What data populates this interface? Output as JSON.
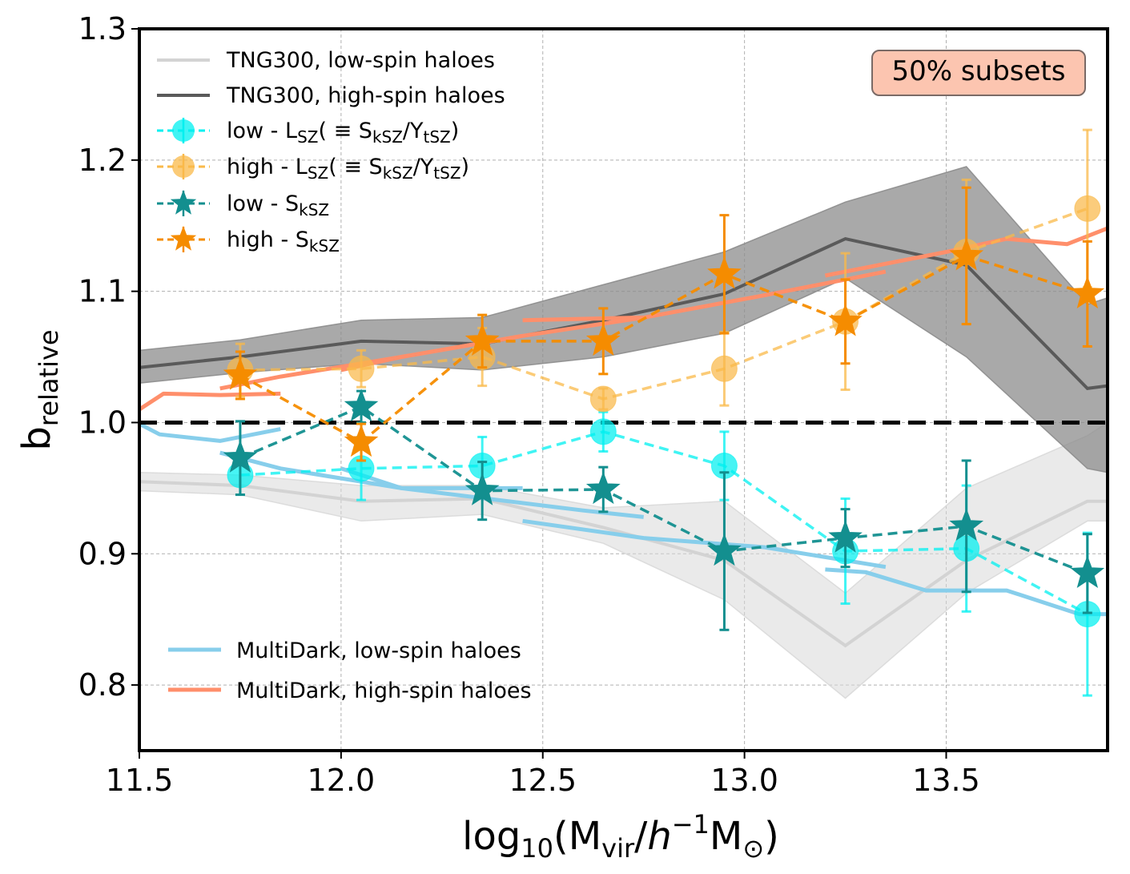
{
  "chart_data": {
    "type": "line",
    "title": "",
    "xlabel": "log10(Mvir/h-1 M⊙)",
    "xlabel_parts": {
      "pre": "log",
      "sub1": "10",
      "mid": "(M",
      "sub2": "vir",
      "slash": "/",
      "h": "h",
      "sup": "−1",
      "m": "M",
      "sun": "⊙",
      "close": ")"
    },
    "ylabel": "brelative",
    "ylabel_parts": {
      "main": "b",
      "sub": "relative"
    },
    "xlim": [
      11.5,
      13.9
    ],
    "ylim": [
      0.75,
      1.3
    ],
    "xticks": [
      11.5,
      12.0,
      12.5,
      13.0,
      13.5
    ],
    "xtick_labels": [
      "11.5",
      "12.0",
      "12.5",
      "13.0",
      "13.5"
    ],
    "yticks": [
      0.8,
      0.9,
      1.0,
      1.1,
      1.2,
      1.3
    ],
    "ytick_labels": [
      "0.8",
      "0.9",
      "1.0",
      "1.1",
      "1.2",
      "1.3"
    ],
    "grid": true,
    "reference_line": 1.0,
    "annotation": "50% subsets",
    "colors": {
      "tng_low": "#d3d3d3",
      "tng_high": "#5a5a5a",
      "tng_low_band": "#d9d9d9",
      "tng_high_band": "#8c8c8c",
      "cyan": "#00f0f0",
      "teal": "#138f8f",
      "lightorange": "#f9b94a",
      "darkorange": "#f58c00",
      "md_low": "#87ceeb",
      "md_high": "#ff8f6b",
      "annot_fill": "#fcc5b0",
      "annot_edge": "#7a6a66"
    },
    "tng": {
      "x": [
        11.5,
        11.75,
        12.05,
        12.35,
        12.65,
        12.95,
        13.25,
        13.55,
        13.85,
        13.9
      ],
      "low": {
        "name": "TNG300, low-spin haloes",
        "center": [
          0.955,
          0.952,
          0.94,
          0.942,
          0.92,
          0.895,
          0.83,
          0.895,
          0.94,
          0.94
        ],
        "lower": [
          0.948,
          0.945,
          0.925,
          0.93,
          0.908,
          0.865,
          0.79,
          0.87,
          0.925,
          0.925
        ],
        "upper": [
          0.962,
          0.96,
          0.952,
          0.952,
          0.935,
          0.94,
          0.87,
          0.95,
          0.99,
          1.0
        ]
      },
      "high": {
        "name": "TNG300, high-spin haloes",
        "center": [
          1.042,
          1.05,
          1.062,
          1.06,
          1.078,
          1.098,
          1.14,
          1.12,
          1.026,
          1.028
        ],
        "lower": [
          1.03,
          1.038,
          1.045,
          1.04,
          1.05,
          1.068,
          1.11,
          1.05,
          0.965,
          0.962
        ],
        "upper": [
          1.055,
          1.063,
          1.078,
          1.08,
          1.105,
          1.13,
          1.168,
          1.195,
          1.09,
          1.095
        ]
      }
    },
    "markers": {
      "x": [
        11.75,
        12.05,
        12.35,
        12.65,
        12.95,
        13.25,
        13.55,
        13.85
      ],
      "series": [
        {
          "name": "low - LSZ(≡SkSZ/YtSZ)",
          "label_parts": {
            "pre": "low - L",
            "sub1": "SZ",
            "mid": "( ≡ S",
            "sub2": "kSZ",
            "mid2": "/Y",
            "sub3": "tSZ",
            "post": ")"
          },
          "marker": "circle",
          "color_key": "cyan",
          "y": [
            0.96,
            0.965,
            0.967,
            0.993,
            0.967,
            0.902,
            0.904,
            0.854
          ],
          "err": [
            0.015,
            0.024,
            0.022,
            0.015,
            0.026,
            0.04,
            0.048,
            0.062
          ]
        },
        {
          "name": "high - LSZ(≡SkSZ/YtSZ)",
          "label_parts": {
            "pre": "high - L",
            "sub1": "SZ",
            "mid": "( ≡ S",
            "sub2": "kSZ",
            "mid2": "/Y",
            "sub3": "tSZ",
            "post": ")"
          },
          "marker": "circle",
          "color_key": "lightorange",
          "y": [
            1.04,
            1.041,
            1.05,
            1.018,
            1.041,
            1.077,
            1.13,
            1.163
          ],
          "err": [
            0.02,
            0.014,
            0.022,
            0.008,
            0.028,
            0.052,
            0.055,
            0.06
          ]
        },
        {
          "name": "low - SkSZ",
          "label_parts": {
            "pre": "low - S",
            "sub1": "kSZ"
          },
          "marker": "star",
          "color_key": "teal",
          "y": [
            0.973,
            1.012,
            0.948,
            0.949,
            0.902,
            0.912,
            0.921,
            0.885
          ],
          "err": [
            0.028,
            0.012,
            0.022,
            0.017,
            0.06,
            0.022,
            0.05,
            0.03
          ]
        },
        {
          "name": "high - SkSZ",
          "label_parts": {
            "pre": "high - S",
            "sub1": "kSZ"
          },
          "marker": "star",
          "color_key": "darkorange",
          "y": [
            1.036,
            0.985,
            1.062,
            1.062,
            1.113,
            1.077,
            1.127,
            1.098
          ],
          "err": [
            0.018,
            0.014,
            0.02,
            0.025,
            0.045,
            0.032,
            0.052,
            0.04
          ]
        }
      ]
    },
    "multidark": {
      "low": {
        "name": "MultiDark, low-spin haloes",
        "segments": [
          {
            "x": [
              11.5,
              11.55,
              11.7,
              11.85
            ],
            "y": [
              0.999,
              0.991,
              0.986,
              0.995
            ]
          },
          {
            "x": [
              11.7,
              11.85,
              12.15,
              12.45
            ],
            "y": [
              0.977,
              0.965,
              0.95,
              0.95
            ]
          },
          {
            "x": [
              12.0,
              12.15,
              12.6,
              12.75
            ],
            "y": [
              0.965,
              0.95,
              0.933,
              0.928
            ]
          },
          {
            "x": [
              12.45,
              12.75,
              13.05,
              13.35
            ],
            "y": [
              0.925,
              0.912,
              0.905,
              0.89
            ]
          },
          {
            "x": [
              13.2,
              13.3,
              13.45,
              13.65,
              13.83,
              13.9
            ],
            "y": [
              0.888,
              0.886,
              0.872,
              0.872,
              0.854,
              0.854
            ]
          }
        ]
      },
      "high": {
        "name": "MultiDark, high-spin haloes",
        "segments": [
          {
            "x": [
              11.5,
              11.56,
              11.7,
              11.85
            ],
            "y": [
              1.01,
              1.022,
              1.021,
              1.022
            ]
          },
          {
            "x": [
              11.7,
              11.85,
              12.15,
              12.45
            ],
            "y": [
              1.026,
              1.035,
              1.05,
              1.066
            ]
          },
          {
            "x": [
              12.0,
              12.15,
              12.45,
              12.75
            ],
            "y": [
              1.04,
              1.05,
              1.066,
              1.08
            ]
          },
          {
            "x": [
              12.45,
              12.75,
              13.05,
              13.35
            ],
            "y": [
              1.078,
              1.08,
              1.097,
              1.115
            ]
          },
          {
            "x": [
              13.2,
              13.5,
              13.65,
              13.8,
              13.9
            ],
            "y": [
              1.112,
              1.13,
              1.14,
              1.136,
              1.148
            ]
          }
        ]
      }
    },
    "legend": {
      "placement_main": "top-left",
      "placement_md": "bottom-left"
    }
  }
}
